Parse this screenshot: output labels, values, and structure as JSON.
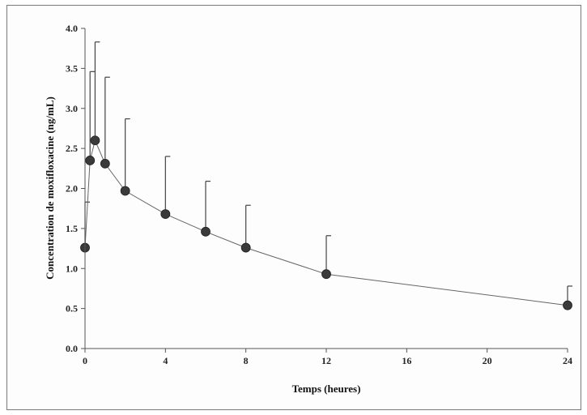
{
  "chart_data": {
    "type": "line",
    "xlabel": "Temps (heures)",
    "ylabel": "Concentration de moxifloxacine (ng/mL)",
    "xlim": [
      0,
      24
    ],
    "ylim": [
      0,
      4.0
    ],
    "x_ticks": [
      0,
      4,
      8,
      12,
      16,
      20,
      24
    ],
    "x_tick_labels": [
      "0",
      "4",
      "8",
      "12",
      "16",
      "20",
      "24"
    ],
    "y_ticks": [
      0,
      0.5,
      1.0,
      1.5,
      2.0,
      2.5,
      3.0,
      3.5,
      4.0
    ],
    "y_tick_labels": [
      "0.0",
      "0.5",
      "1.0",
      "1.5",
      "2.0",
      "2.5",
      "3.0",
      "3.5",
      "4.0"
    ],
    "grid": false,
    "series": [
      {
        "x": [
          0,
          0.25,
          0.5,
          1,
          2,
          4,
          6,
          8,
          12,
          24
        ],
        "y": [
          1.26,
          2.35,
          2.6,
          2.31,
          1.97,
          1.68,
          1.46,
          1.26,
          0.93,
          0.54
        ],
        "error_upper": [
          1.83,
          3.46,
          3.83,
          3.39,
          2.87,
          2.4,
          2.09,
          1.79,
          1.41,
          0.78
        ]
      }
    ],
    "colors": {
      "marker": "#3a3a3a",
      "line": "#666666",
      "axis": "#555555"
    }
  }
}
